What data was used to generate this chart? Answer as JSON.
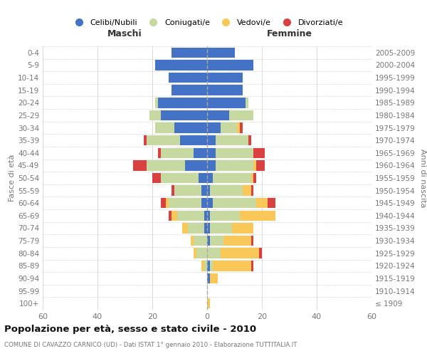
{
  "age_groups": [
    "100+",
    "95-99",
    "90-94",
    "85-89",
    "80-84",
    "75-79",
    "70-74",
    "65-69",
    "60-64",
    "55-59",
    "50-54",
    "45-49",
    "40-44",
    "35-39",
    "30-34",
    "25-29",
    "20-24",
    "15-19",
    "10-14",
    "5-9",
    "0-4"
  ],
  "birth_years": [
    "≤ 1909",
    "1910-1914",
    "1915-1919",
    "1920-1924",
    "1925-1929",
    "1930-1934",
    "1935-1939",
    "1940-1944",
    "1945-1949",
    "1950-1954",
    "1955-1959",
    "1960-1964",
    "1965-1969",
    "1970-1974",
    "1975-1979",
    "1980-1984",
    "1985-1989",
    "1990-1994",
    "1995-1999",
    "2000-2004",
    "2005-2009"
  ],
  "maschi_celibi": [
    0,
    0,
    0,
    0,
    0,
    0,
    1,
    1,
    2,
    2,
    3,
    8,
    5,
    10,
    12,
    17,
    18,
    13,
    14,
    19,
    13
  ],
  "maschi_coniugati": [
    0,
    0,
    0,
    1,
    4,
    5,
    6,
    10,
    12,
    10,
    14,
    14,
    12,
    12,
    7,
    4,
    1,
    0,
    0,
    0,
    0
  ],
  "maschi_vedovi": [
    0,
    0,
    0,
    1,
    1,
    1,
    2,
    2,
    1,
    0,
    0,
    0,
    0,
    0,
    0,
    0,
    0,
    0,
    0,
    0,
    0
  ],
  "maschi_divorziati": [
    0,
    0,
    0,
    0,
    0,
    0,
    0,
    1,
    2,
    1,
    3,
    5,
    1,
    1,
    0,
    0,
    0,
    0,
    0,
    0,
    0
  ],
  "femmine_nubili": [
    0,
    0,
    1,
    1,
    0,
    1,
    1,
    1,
    2,
    1,
    2,
    3,
    3,
    3,
    5,
    8,
    14,
    13,
    13,
    17,
    10
  ],
  "femmine_coniugate": [
    0,
    0,
    0,
    1,
    5,
    5,
    8,
    11,
    16,
    12,
    14,
    14,
    14,
    12,
    6,
    9,
    1,
    0,
    0,
    0,
    0
  ],
  "femmine_vedove": [
    1,
    0,
    3,
    14,
    14,
    10,
    8,
    13,
    4,
    3,
    1,
    1,
    0,
    0,
    1,
    0,
    0,
    0,
    0,
    0,
    0
  ],
  "femmine_divorziate": [
    0,
    0,
    0,
    1,
    1,
    1,
    0,
    0,
    3,
    1,
    1,
    3,
    4,
    1,
    1,
    0,
    0,
    0,
    0,
    0,
    0
  ],
  "color_celibi": "#4472C4",
  "color_coniugati": "#C5D9A0",
  "color_vedovi": "#FAC858",
  "color_divorziati": "#D94040",
  "legend_labels": [
    "Celibi/Nubili",
    "Coniugati/e",
    "Vedovi/e",
    "Divorziati/e"
  ],
  "title": "Popolazione per età, sesso e stato civile - 2010",
  "subtitle": "COMUNE DI CAVAZZO CARNICO (UD) - Dati ISTAT 1° gennaio 2010 - Elaborazione TUTTITALIA.IT",
  "label_maschi": "Maschi",
  "label_femmine": "Femmine",
  "ylabel_left": "Fasce di età",
  "ylabel_right": "Anni di nascita",
  "xlim": 60,
  "bg_color": "#ffffff",
  "grid_color": "#cccccc",
  "text_color": "#777777",
  "title_color": "#111111"
}
